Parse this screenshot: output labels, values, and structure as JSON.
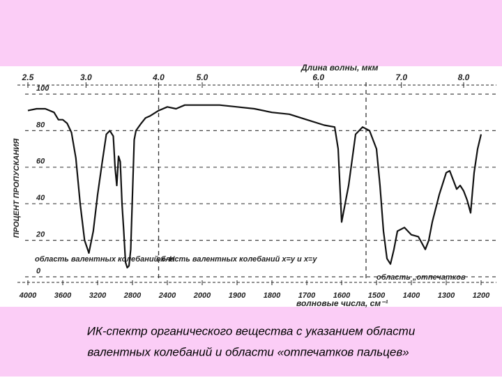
{
  "chart_data": {
    "type": "line",
    "top_axis_label": "Длина волны, мкм",
    "x_label": "волновые числа, см⁻¹",
    "y_label": "ПРОЦЕНТ ПРОПУСКАНИЯ",
    "xlim": [
      4000,
      1200
    ],
    "xticks": [
      4000,
      3600,
      3200,
      2800,
      2400,
      2000,
      1900,
      1800,
      1700,
      1600,
      1500,
      1400,
      1300,
      1200
    ],
    "x2ticks": [
      2.5,
      {
        "value": 3,
        "label": "3.0"
      },
      {
        "value": 4,
        "label": "4.0"
      },
      {
        "value": 5,
        "label": "5.0"
      },
      {
        "value": 6,
        "label": "6.0"
      },
      {
        "value": 7,
        "label": "7.0"
      },
      {
        "value": 8,
        "label": "8.0"
      }
    ],
    "ylim": [
      0,
      100
    ],
    "yticks": [
      0,
      20,
      40,
      60,
      80,
      100
    ],
    "grid": true,
    "region_boundaries": [
      2500,
      1530
    ],
    "annotations": [
      "область валентных колебаний x–H",
      "область валентных колебаний x=y и x≡y",
      "область „отпечатков"
    ],
    "series": [
      {
        "color": "#111111",
        "x": [
          4000,
          3900,
          3800,
          3700,
          3650,
          3600,
          3550,
          3500,
          3450,
          3400,
          3350,
          3300,
          3250,
          3200,
          3150,
          3100,
          3060,
          3020,
          3000,
          2980,
          2960,
          2940,
          2920,
          2900,
          2880,
          2860,
          2840,
          2820,
          2800,
          2780,
          2760,
          2700,
          2650,
          2600,
          2500,
          2400,
          2300,
          2200,
          2100,
          2000,
          1950,
          1900,
          1850,
          1800,
          1750,
          1700,
          1650,
          1620,
          1610,
          1600,
          1590,
          1580,
          1560,
          1540,
          1520,
          1500,
          1490,
          1480,
          1470,
          1460,
          1450,
          1440,
          1420,
          1400,
          1380,
          1360,
          1350,
          1340,
          1320,
          1300,
          1290,
          1280,
          1270,
          1260,
          1250,
          1240,
          1230,
          1220,
          1210,
          1200
        ],
        "values": [
          91,
          92,
          92,
          90,
          86,
          86,
          84,
          79,
          65,
          40,
          20,
          13,
          25,
          45,
          62,
          78,
          80,
          77,
          60,
          50,
          66,
          63,
          40,
          25,
          8,
          5,
          6,
          15,
          45,
          75,
          80,
          84,
          87,
          88,
          91,
          93,
          92,
          94,
          94,
          94,
          94,
          93,
          92,
          90,
          89,
          86,
          83,
          82,
          70,
          30,
          40,
          50,
          78,
          82,
          80,
          70,
          50,
          25,
          10,
          7,
          15,
          25,
          27,
          23,
          22,
          15,
          20,
          30,
          45,
          57,
          58,
          53,
          48,
          50,
          47,
          42,
          35,
          57,
          70,
          78
        ]
      }
    ]
  },
  "caption": [
    "ИК-спектр органического вещества с указанием области",
    "валентных колебаний и области «отпечатков пальцев»"
  ]
}
